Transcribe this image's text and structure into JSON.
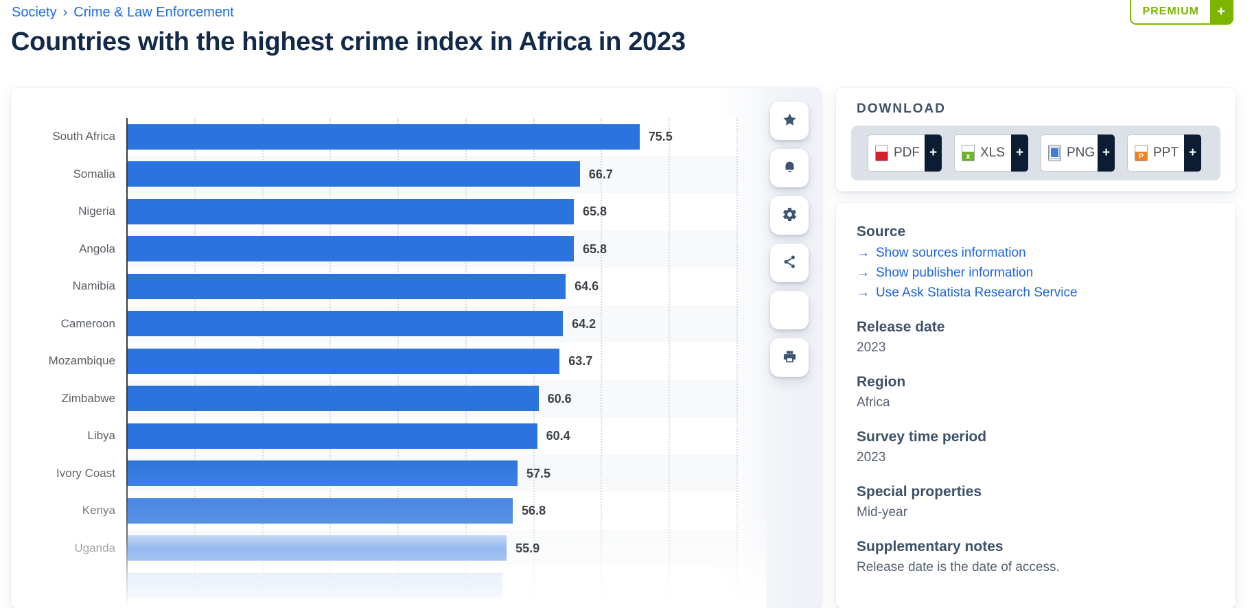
{
  "breadcrumb": {
    "items": [
      "Society",
      "Crime & Law Enforcement"
    ],
    "separator": "›"
  },
  "page_title": "Countries with the highest crime index in Africa in 2023",
  "premium_badge": {
    "label": "PREMIUM",
    "plus": "+",
    "color": "#7db400"
  },
  "chart_data": {
    "type": "bar",
    "orientation": "horizontal",
    "title": "Countries with the highest crime index in Africa in 2023",
    "categories": [
      "South Africa",
      "Somalia",
      "Nigeria",
      "Angola",
      "Namibia",
      "Cameroon",
      "Mozambique",
      "Zimbabwe",
      "Libya",
      "Ivory Coast",
      "Kenya",
      "Uganda"
    ],
    "values": [
      75.5,
      66.7,
      65.8,
      65.8,
      64.6,
      64.2,
      63.7,
      60.6,
      60.4,
      57.5,
      56.8,
      55.9
    ],
    "xlabel": "",
    "ylabel": "",
    "xlim": [
      0,
      90
    ],
    "gridline_interval": 10,
    "grid": "dotted-vertical",
    "legend": "none",
    "bar_color": "#2b74dd",
    "row_stripe_colors": [
      "#ffffff",
      "#f8f9fa"
    ],
    "truncated_next_bar_estimate": 55.3,
    "bottom_fade": true
  },
  "toolbar": {
    "buttons": [
      {
        "name": "favorite-star-button",
        "icon": "star-icon"
      },
      {
        "name": "alert-bell-button",
        "icon": "bell-icon"
      },
      {
        "name": "settings-gear-button",
        "icon": "gear-icon"
      },
      {
        "name": "share-button",
        "icon": "share-icon"
      },
      {
        "name": "cite-button",
        "icon": "quote-icon",
        "glyph": "“"
      },
      {
        "name": "print-button",
        "icon": "printer-icon"
      }
    ]
  },
  "download": {
    "heading": "DOWNLOAD",
    "plus": "+",
    "buttons": [
      {
        "label": "PDF",
        "icon": "pdf-file-icon"
      },
      {
        "label": "XLS",
        "icon": "xls-file-icon"
      },
      {
        "label": "PNG",
        "icon": "png-file-icon"
      },
      {
        "label": "PPT",
        "icon": "ppt-file-icon"
      }
    ]
  },
  "info": {
    "source_heading": "Source",
    "source_links": [
      {
        "arrow": "→",
        "label": "Show sources information"
      },
      {
        "arrow": "→",
        "label": "Show publisher information"
      },
      {
        "arrow": "→",
        "label": "Use Ask Statista Research Service"
      }
    ],
    "fields": [
      {
        "label": "Release date",
        "value": "2023"
      },
      {
        "label": "Region",
        "value": "Africa"
      },
      {
        "label": "Survey time period",
        "value": "2023"
      },
      {
        "label": "Special properties",
        "value": "Mid-year"
      },
      {
        "label": "Supplementary notes",
        "value": "Release date is the date of access."
      }
    ]
  }
}
